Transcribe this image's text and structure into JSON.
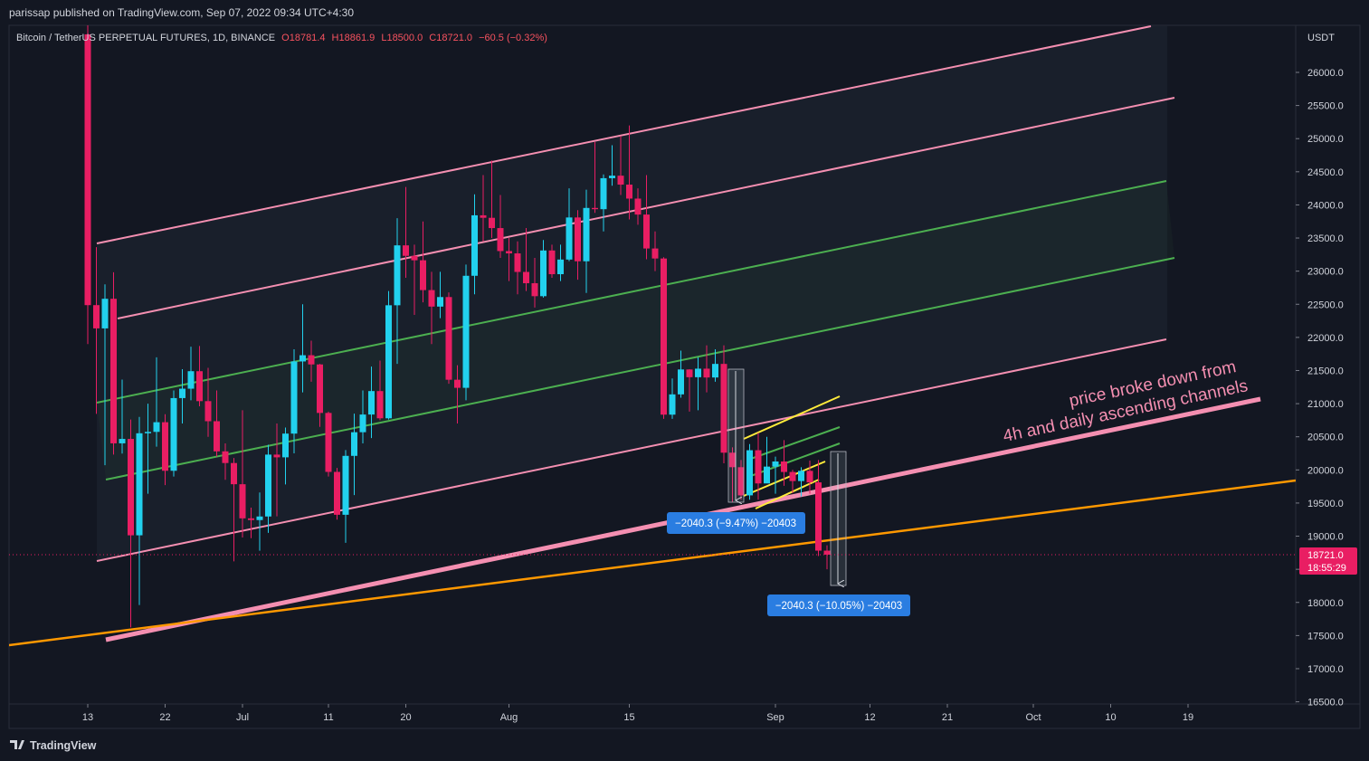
{
  "header": {
    "published": "parissap published on TradingView.com, Sep 07, 2022 09:34 UTC+4:30"
  },
  "footer": {
    "brand": "TradingView"
  },
  "chart_data": {
    "type": "candlestick",
    "symbol": "Bitcoin / TetherUS PERPETUAL FUTURES, 1D, BINANCE",
    "legend_values": [
      "O18781.4",
      "H18861.9",
      "L18500.0",
      "C18721.0",
      "−60.5 (−0.32%)"
    ],
    "axis_unit": "USDT",
    "up_color": "#22d1ee",
    "down_color": "#e91e63",
    "grid": false,
    "x": [
      "06-13",
      "06-14",
      "06-15",
      "06-16",
      "06-17",
      "06-18",
      "06-19",
      "06-20",
      "06-21",
      "06-22",
      "06-23",
      "06-24",
      "06-25",
      "06-26",
      "06-27",
      "06-28",
      "06-29",
      "06-30",
      "07-01",
      "07-02",
      "07-03",
      "07-04",
      "07-05",
      "07-06",
      "07-07",
      "07-08",
      "07-09",
      "07-10",
      "07-11",
      "07-12",
      "07-13",
      "07-14",
      "07-15",
      "07-16",
      "07-17",
      "07-18",
      "07-19",
      "07-20",
      "07-21",
      "07-22",
      "07-23",
      "07-24",
      "07-25",
      "07-26",
      "07-27",
      "07-28",
      "07-29",
      "07-30",
      "07-31",
      "08-01",
      "08-02",
      "08-03",
      "08-04",
      "08-05",
      "08-06",
      "08-07",
      "08-08",
      "08-09",
      "08-10",
      "08-11",
      "08-12",
      "08-13",
      "08-14",
      "08-15",
      "08-16",
      "08-17",
      "08-18",
      "08-19",
      "08-20",
      "08-21",
      "08-22",
      "08-23",
      "08-24",
      "08-25",
      "08-26",
      "08-27",
      "08-28",
      "08-29",
      "08-30",
      "08-31",
      "09-01",
      "09-02",
      "09-03",
      "09-04",
      "09-05",
      "09-06",
      "09-07"
    ],
    "open": [
      26574,
      22487,
      22136,
      22583,
      20401,
      20468,
      19013,
      20553,
      20574,
      20720,
      19987,
      21084,
      21226,
      21490,
      21038,
      20735,
      20280,
      20104,
      19784,
      19269,
      19243,
      19297,
      20231,
      20190,
      20548,
      21637,
      21731,
      21592,
      20860,
      19970,
      19323,
      20212,
      20569,
      20836,
      21190,
      20779,
      22485,
      23389,
      23231,
      23164,
      22714,
      22465,
      22609,
      21361,
      21239,
      22930,
      23843,
      23805,
      23650,
      23303,
      23268,
      22988,
      22818,
      22622,
      23312,
      22954,
      23175,
      23810,
      23149,
      23954,
      23935,
      24403,
      24441,
      24306,
      24095,
      23854,
      23342,
      23191,
      20834,
      21140,
      21516,
      21399,
      21528,
      21395,
      21600,
      20260,
      20041,
      19616,
      20297,
      19796,
      20050,
      20127,
      19969,
      19832,
      19986,
      19812,
      18781.4
    ],
    "high": [
      26895,
      23362,
      22800,
      22983,
      21364,
      20760,
      20800,
      21000,
      21700,
      20840,
      21200,
      21520,
      21860,
      21870,
      21540,
      21200,
      20400,
      20180,
      20900,
      19430,
      19660,
      20380,
      20700,
      20640,
      21820,
      22500,
      21950,
      21600,
      20880,
      20030,
      20300,
      20850,
      21200,
      21560,
      21650,
      22700,
      23800,
      24270,
      23400,
      23750,
      22990,
      22990,
      22680,
      21580,
      23100,
      24160,
      24450,
      24670,
      24150,
      23500,
      23450,
      23650,
      23200,
      23470,
      23400,
      23400,
      24250,
      23920,
      24230,
      24950,
      24460,
      24900,
      25040,
      25200,
      24250,
      24450,
      23600,
      23210,
      21380,
      21800,
      21520,
      21700,
      21880,
      21820,
      21880,
      20340,
      20150,
      20390,
      20560,
      20500,
      20200,
      20450,
      20000,
      20040,
      20140,
      20150,
      18861.9
    ],
    "low": [
      21900,
      20846,
      20071,
      20232,
      20246,
      17622,
      17960,
      19640,
      20350,
      19770,
      19900,
      20700,
      21050,
      20960,
      20500,
      20200,
      19850,
      18620,
      18980,
      18970,
      18780,
      19050,
      19300,
      19780,
      20250,
      21170,
      21330,
      20650,
      19900,
      19250,
      18900,
      19620,
      20400,
      20480,
      20750,
      20760,
      21600,
      22900,
      22340,
      22530,
      21900,
      22290,
      21300,
      20700,
      21050,
      22650,
      23450,
      23500,
      23200,
      22850,
      22650,
      22700,
      22450,
      22600,
      22900,
      22850,
      23150,
      22870,
      22670,
      23880,
      23600,
      24290,
      24150,
      23780,
      23700,
      23180,
      23000,
      20770,
      20770,
      21090,
      20880,
      20900,
      21170,
      21330,
      20100,
      19520,
      19550,
      19550,
      19550,
      19800,
      19640,
      19760,
      19650,
      19600,
      19640,
      18700,
      18500
    ],
    "close": [
      22487,
      22136,
      22583,
      20401,
      20468,
      19013,
      20553,
      20574,
      20720,
      19987,
      21084,
      21226,
      21490,
      21038,
      20735,
      20280,
      20104,
      19784,
      19269,
      19243,
      19297,
      20231,
      20190,
      20548,
      21637,
      21731,
      21592,
      20860,
      19970,
      19323,
      20212,
      20569,
      20836,
      21190,
      20779,
      22485,
      23389,
      23231,
      23164,
      22714,
      22465,
      22609,
      21361,
      21239,
      22930,
      23843,
      23805,
      23650,
      23303,
      23268,
      22988,
      22818,
      22622,
      23312,
      22954,
      23175,
      23810,
      23149,
      23954,
      23935,
      24403,
      24441,
      24306,
      24095,
      23854,
      23342,
      23191,
      20834,
      21140,
      21516,
      21399,
      21528,
      21395,
      21600,
      20260,
      20041,
      19616,
      20297,
      19796,
      20050,
      20127,
      19969,
      19832,
      19986,
      19812,
      18781.4,
      18721
    ],
    "xlim": [
      "06-04",
      "10-31"
    ],
    "xticks": [
      {
        "value": "06-13",
        "label": "13"
      },
      {
        "value": "06-22",
        "label": "22"
      },
      {
        "value": "07-01",
        "label": "Jul"
      },
      {
        "value": "07-11",
        "label": "11"
      },
      {
        "value": "07-20",
        "label": "20"
      },
      {
        "value": "08-01",
        "label": "Aug"
      },
      {
        "value": "08-15",
        "label": "15"
      },
      {
        "value": "09-01",
        "label": "Sep"
      },
      {
        "value": "09-12",
        "label": "12"
      },
      {
        "value": "09-21",
        "label": "21"
      },
      {
        "value": "10-01",
        "label": "Oct"
      },
      {
        "value": "10-10",
        "label": "10"
      },
      {
        "value": "10-19",
        "label": "19"
      }
    ],
    "ylim": [
      16467,
      26710
    ],
    "yticks": [
      {
        "value": 16500,
        "label": "16500.0"
      },
      {
        "value": 17000,
        "label": "17000.0"
      },
      {
        "value": 17500,
        "label": "17500.0"
      },
      {
        "value": 18000,
        "label": "18000.0"
      },
      {
        "value": 18500,
        "label": "18500.0"
      },
      {
        "value": 19000,
        "label": "19000.0"
      },
      {
        "value": 19500,
        "label": "19500.0"
      },
      {
        "value": 20000,
        "label": "20000.0"
      },
      {
        "value": 20500,
        "label": "20500.0"
      },
      {
        "value": 21000,
        "label": "21000.0"
      },
      {
        "value": 21500,
        "label": "21500.0"
      },
      {
        "value": 22000,
        "label": "22000.0"
      },
      {
        "value": 22500,
        "label": "22500.0"
      },
      {
        "value": 23000,
        "label": "23000.0"
      },
      {
        "value": 23500,
        "label": "23500.0"
      },
      {
        "value": 24000,
        "label": "24000.0"
      },
      {
        "value": 24500,
        "label": "24500.0"
      },
      {
        "value": 25000,
        "label": "25000.0"
      },
      {
        "value": 25500,
        "label": "25500.0"
      },
      {
        "value": 26000,
        "label": "26000.0"
      }
    ],
    "last_price": {
      "value": 18721,
      "label": "18721.0"
    },
    "countdown": "18:55:29",
    "annotations": [
      "price broke down from",
      "4h and daily ascending channels"
    ],
    "measure_labels": [
      "−2040.3 (−9.47%) −20403",
      "−2040.3 (−10.05%) −20403"
    ]
  }
}
